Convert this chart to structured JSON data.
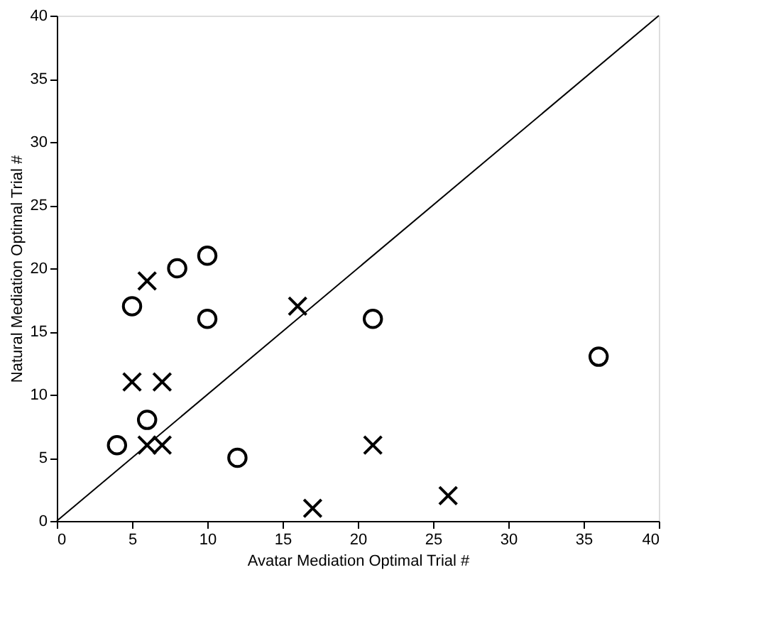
{
  "chart_data": {
    "type": "scatter",
    "xlabel": "Avatar Mediation Optimal Trial #",
    "ylabel": "Natural Mediation Optimal Trial #",
    "xlim": [
      0,
      40
    ],
    "ylim": [
      0,
      40
    ],
    "xticks": [
      0,
      5,
      10,
      15,
      20,
      25,
      30,
      35,
      40
    ],
    "yticks": [
      0,
      5,
      10,
      15,
      20,
      25,
      30,
      35,
      40
    ],
    "series": [
      {
        "type": "scatter",
        "marker": "circle",
        "color": "#000000",
        "x": [
          4,
          5,
          6,
          8,
          10,
          10,
          12,
          21,
          36
        ],
        "values": [
          6,
          17,
          8,
          20,
          21,
          16,
          5,
          16,
          13
        ]
      },
      {
        "type": "scatter",
        "marker": "cross",
        "color": "#000000",
        "x": [
          5,
          6,
          6,
          7,
          7,
          16,
          17,
          21,
          26
        ],
        "values": [
          11,
          19,
          6,
          11,
          6,
          17,
          1,
          6,
          2
        ]
      },
      {
        "type": "line",
        "color": "#000000",
        "x": [
          0,
          40
        ],
        "values": [
          0,
          40
        ]
      }
    ]
  }
}
